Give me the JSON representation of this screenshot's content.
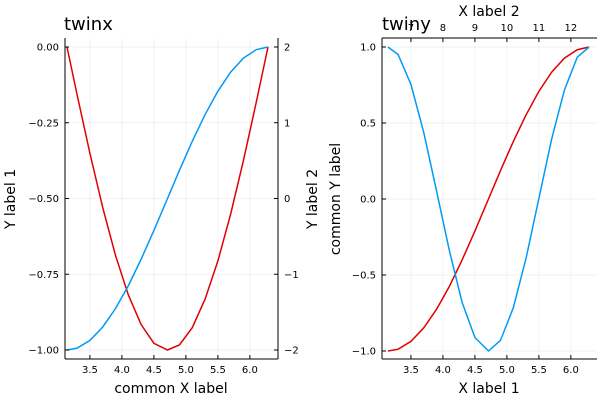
{
  "chart_data": [
    {
      "id": "twinx",
      "type": "line",
      "title": "twinx",
      "xlabel": "common X label",
      "ylabel_left": "Y label 1",
      "ylabel_right": "Y label 2",
      "xlim": [
        3.1416,
        6.2832
      ],
      "ylim_left": [
        -1.0,
        0.0
      ],
      "ylim_right": [
        -2.0,
        2.0
      ],
      "x_ticks": [
        3.5,
        4.0,
        4.5,
        5.0,
        5.5,
        6.0
      ],
      "x_tick_labels": [
        "3.5",
        "4.0",
        "4.5",
        "5.0",
        "5.5",
        "6.0"
      ],
      "y_ticks_left": [
        0.0,
        -0.25,
        -0.5,
        -0.75,
        -1.0
      ],
      "y_tick_labels_left": [
        "0.00",
        "−0.25",
        "−0.50",
        "−0.75",
        "−1.00"
      ],
      "y_ticks_right": [
        2,
        1,
        0,
        -1,
        -2
      ],
      "y_tick_labels_right": [
        "2",
        "1",
        "0",
        "−1",
        "−2"
      ],
      "grid": true,
      "series": [
        {
          "color": "#e00000",
          "axis": "left",
          "x": [
            3.1416,
            3.3,
            3.5,
            3.7,
            3.9,
            4.1,
            4.3,
            4.5,
            4.7124,
            4.9,
            5.1,
            5.3,
            5.5,
            5.7,
            5.9,
            6.1,
            6.2832
          ],
          "y": [
            0.0,
            -0.158,
            -0.351,
            -0.53,
            -0.688,
            -0.818,
            -0.916,
            -0.978,
            -1.0,
            -0.983,
            -0.926,
            -0.832,
            -0.706,
            -0.551,
            -0.374,
            -0.182,
            0.0
          ]
        },
        {
          "color": "#009af9",
          "axis": "right",
          "x": [
            3.1416,
            3.3,
            3.5,
            3.7,
            3.9,
            4.1,
            4.3,
            4.5,
            4.7124,
            4.9,
            5.1,
            5.3,
            5.5,
            5.7,
            5.9,
            6.1,
            6.2832
          ],
          "y": [
            -2.0,
            -1.975,
            -1.873,
            -1.696,
            -1.452,
            -1.152,
            -0.802,
            -0.422,
            0.0,
            0.374,
            0.756,
            1.108,
            1.417,
            1.669,
            1.854,
            1.965,
            2.0
          ]
        }
      ]
    },
    {
      "id": "twiny",
      "type": "line",
      "title": "twiny",
      "xlabel_bottom": "X label 1",
      "xlabel_top": "X label 2",
      "ylabel": "common Y label",
      "xlim_bottom": [
        3.1416,
        6.2832
      ],
      "xlim_top": [
        6.2832,
        12.5664
      ],
      "ylim": [
        -1.0,
        1.0
      ],
      "x_ticks_bottom": [
        3.5,
        4.0,
        4.5,
        5.0,
        5.5,
        6.0
      ],
      "x_tick_labels_bottom": [
        "3.5",
        "4.0",
        "4.5",
        "5.0",
        "5.5",
        "6.0"
      ],
      "x_ticks_top": [
        7,
        8,
        9,
        10,
        11,
        12
      ],
      "x_tick_labels_top": [
        "7",
        "8",
        "9",
        "10",
        "11",
        "12"
      ],
      "y_ticks": [
        1.0,
        0.5,
        0.0,
        -0.5,
        -1.0
      ],
      "y_tick_labels": [
        "1.0",
        "0.5",
        "0.0",
        "−0.5",
        "−1.0"
      ],
      "grid": true,
      "series": [
        {
          "color": "#e00000",
          "axis": "bottom",
          "x": [
            3.1416,
            3.3,
            3.5,
            3.7,
            3.9,
            4.1,
            4.3,
            4.5,
            4.7124,
            4.9,
            5.1,
            5.3,
            5.5,
            5.7,
            5.9,
            6.1,
            6.2832
          ],
          "y": [
            -1.0,
            -0.988,
            -0.937,
            -0.848,
            -0.726,
            -0.576,
            -0.401,
            -0.211,
            0.0,
            0.187,
            0.378,
            0.554,
            0.708,
            0.835,
            0.927,
            0.982,
            1.0
          ]
        },
        {
          "color": "#009af9",
          "axis": "top",
          "x": [
            6.2832,
            6.6,
            7.0,
            7.4,
            7.8,
            8.2,
            8.6,
            9.0,
            9.4248,
            9.8,
            10.2,
            10.6,
            11.0,
            11.4,
            11.8,
            12.2,
            12.5664
          ],
          "y": [
            1.0,
            0.95,
            0.754,
            0.438,
            0.054,
            -0.338,
            -0.68,
            -0.911,
            -1.0,
            -0.93,
            -0.716,
            -0.389,
            0.004,
            0.395,
            0.718,
            0.933,
            1.0
          ]
        }
      ]
    }
  ]
}
